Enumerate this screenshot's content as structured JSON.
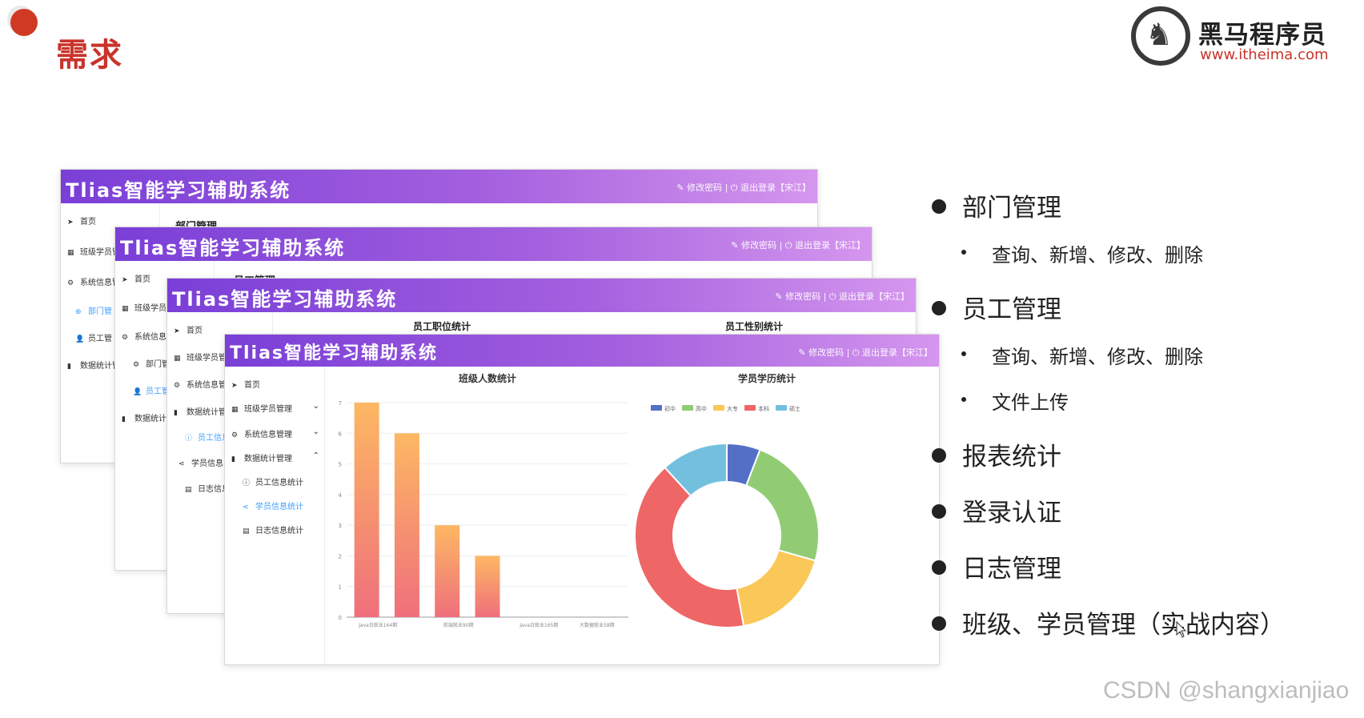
{
  "slide": {
    "title": "需求",
    "logo_name": "黑马程序员",
    "logo_url": "www.itheima.com",
    "watermark": "CSDN @shangxianjiao",
    "colors": {
      "accent": "#c9332a",
      "header_start": "#7a3fd7",
      "header_end": "#d596ee",
      "link_active": "#409eff"
    }
  },
  "app": {
    "title": "Tlias智能学习辅助系统",
    "change_password": "修改密码",
    "logout": "退出登录【宋江】",
    "separator": "|"
  },
  "windows": {
    "w1": {
      "content_title": "部门管理",
      "menu": [
        {
          "label": "首页",
          "icon": "send-icon"
        },
        {
          "label": "班级学员管",
          "icon": "grid-icon"
        },
        {
          "label": "系统信息管",
          "icon": "gear-icon"
        },
        {
          "label": "部门管",
          "icon": "plus-circle-icon"
        },
        {
          "label": "员工管",
          "icon": "user-icon"
        },
        {
          "label": "数据统计管",
          "icon": "bar-chart-icon"
        }
      ]
    },
    "w2": {
      "content_title": "员工管理",
      "menu": [
        {
          "label": "首页",
          "icon": "send-icon"
        },
        {
          "label": "班级学员",
          "icon": "grid-icon"
        },
        {
          "label": "系统信息",
          "icon": "gear-icon"
        },
        {
          "label": "部门管",
          "icon": "gear-icon"
        },
        {
          "label": "员工管",
          "icon": "user-icon"
        },
        {
          "label": "数据统计",
          "icon": "bar-chart-icon"
        }
      ]
    },
    "w3": {
      "chart_title_left": "员工职位统计",
      "chart_title_right": "员工性别统计",
      "menu": [
        {
          "label": "首页",
          "icon": "send-icon"
        },
        {
          "label": "班级学员管",
          "icon": "grid-icon"
        },
        {
          "label": "系统信息管",
          "icon": "gear-icon"
        },
        {
          "label": "数据统计管",
          "icon": "bar-chart-icon"
        },
        {
          "label": "员工信息",
          "icon": "info-icon"
        },
        {
          "label": "学员信息",
          "icon": "share-icon"
        },
        {
          "label": "日志信息",
          "icon": "doc-icon"
        }
      ]
    },
    "w4": {
      "menu": [
        {
          "label": "首页",
          "icon": "send-icon"
        },
        {
          "label": "班级学员管理",
          "icon": "grid-icon",
          "arrow": "⌄"
        },
        {
          "label": "系统信息管理",
          "icon": "gear-icon",
          "arrow": "⌄"
        },
        {
          "label": "数据统计管理",
          "icon": "bar-chart-icon",
          "arrow": "⌃"
        },
        {
          "label": "员工信息统计",
          "icon": "info-icon"
        },
        {
          "label": "学员信息统计",
          "icon": "share-icon"
        },
        {
          "label": "日志信息统计",
          "icon": "doc-icon"
        }
      ]
    }
  },
  "chart_data": [
    {
      "type": "bar",
      "title": "班级人数统计",
      "categories": [
        "Java日就业164期",
        "",
        "前端就业90期",
        "",
        "Java日就业165期",
        "",
        "大数据就业58期"
      ],
      "values": [
        7,
        6,
        3,
        2,
        0,
        0,
        0
      ],
      "yticks": [
        0,
        1,
        2,
        3,
        4,
        5,
        6,
        7
      ],
      "ylim": [
        0,
        7
      ],
      "xlabel": "",
      "ylabel": "",
      "colors": [
        "#fdb863",
        "#ef6f7c"
      ]
    },
    {
      "type": "pie",
      "title": "学员学历统计",
      "legend": [
        "初中",
        "高中",
        "大专",
        "本科",
        "硕士"
      ],
      "values": [
        1,
        4,
        3,
        7,
        2
      ],
      "colors": [
        "#5470c6",
        "#91cc75",
        "#fac858",
        "#ee6666",
        "#73c0de"
      ],
      "legend_position": "top"
    }
  ],
  "bullets": [
    {
      "level": 1,
      "text": "部门管理"
    },
    {
      "level": 2,
      "text": "查询、新增、修改、删除"
    },
    {
      "level": 1,
      "text": "员工管理"
    },
    {
      "level": 2,
      "text": "查询、新增、修改、删除"
    },
    {
      "level": 2,
      "text": "文件上传"
    },
    {
      "level": 1,
      "text": "报表统计"
    },
    {
      "level": 1,
      "text": "登录认证"
    },
    {
      "level": 1,
      "text": "日志管理"
    },
    {
      "level": 1,
      "text": "班级、学员管理（实战内容）"
    }
  ]
}
